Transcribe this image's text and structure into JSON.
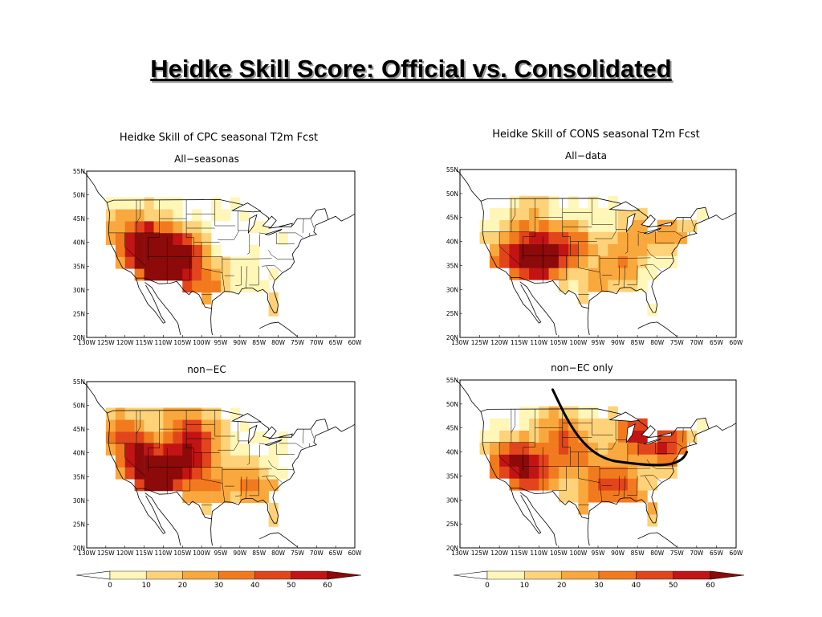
{
  "slide": {
    "title": "Heidke Skill Score: Official vs. Consolidated"
  },
  "panels": [
    {
      "id": "cpc-all",
      "title": "Heidke Skill of CPC seasonal T2m Fcst",
      "subtitle": "All−seasonas",
      "hot_regions": [
        {
          "lon": -111,
          "lat": 36,
          "v": 50
        },
        {
          "lon": -108,
          "lat": 35,
          "v": 45
        },
        {
          "lon": -117,
          "lat": 38,
          "v": 35
        },
        {
          "lon": -113,
          "lat": 41,
          "v": 30
        },
        {
          "lon": -105,
          "lat": 38,
          "v": 35
        },
        {
          "lon": -100,
          "lat": 32,
          "v": 20
        },
        {
          "lon": -96,
          "lat": 30,
          "v": 15
        },
        {
          "lon": -120,
          "lat": 44,
          "v": 22
        },
        {
          "lon": -82,
          "lat": 27,
          "v": 15
        }
      ]
    },
    {
      "id": "cons-all",
      "title": "Heidke Skill of CONS seasonal T2m Fcst",
      "subtitle": "All−data",
      "hot_regions": [
        {
          "lon": -111,
          "lat": 36,
          "v": 48
        },
        {
          "lon": -107,
          "lat": 38,
          "v": 40
        },
        {
          "lon": -118,
          "lat": 37,
          "v": 35
        },
        {
          "lon": -100,
          "lat": 40,
          "v": 25
        },
        {
          "lon": -88,
          "lat": 36,
          "v": 25
        },
        {
          "lon": -85,
          "lat": 44,
          "v": 22
        },
        {
          "lon": -75,
          "lat": 41,
          "v": 25
        },
        {
          "lon": -95,
          "lat": 31,
          "v": 22
        },
        {
          "lon": -113,
          "lat": 45,
          "v": 20
        }
      ]
    },
    {
      "id": "cpc-nonec",
      "title": "",
      "subtitle": "non−EC",
      "hot_regions": [
        {
          "lon": -112,
          "lat": 34,
          "v": 58
        },
        {
          "lon": -117,
          "lat": 39,
          "v": 48
        },
        {
          "lon": -106,
          "lat": 38,
          "v": 42
        },
        {
          "lon": -100,
          "lat": 42,
          "v": 35
        },
        {
          "lon": -98,
          "lat": 33,
          "v": 30
        },
        {
          "lon": -88,
          "lat": 34,
          "v": 25
        },
        {
          "lon": -120,
          "lat": 45,
          "v": 35
        },
        {
          "lon": -105,
          "lat": 46,
          "v": 30
        },
        {
          "lon": -82,
          "lat": 30,
          "v": 20
        }
      ]
    },
    {
      "id": "cons-nonec",
      "title": "",
      "subtitle": "non−EC only",
      "hot_regions": [
        {
          "lon": -111,
          "lat": 36,
          "v": 50
        },
        {
          "lon": -118,
          "lat": 38,
          "v": 45
        },
        {
          "lon": -85,
          "lat": 44,
          "v": 50
        },
        {
          "lon": -76,
          "lat": 41,
          "v": 45
        },
        {
          "lon": -100,
          "lat": 40,
          "v": 32
        },
        {
          "lon": -90,
          "lat": 34,
          "v": 35
        },
        {
          "lon": -105,
          "lat": 45,
          "v": 30
        },
        {
          "lon": -96,
          "lat": 31,
          "v": 28
        },
        {
          "lon": -82,
          "lat": 29,
          "v": 22
        }
      ]
    }
  ],
  "axes": {
    "lat_ticks": [
      "55N",
      "50N",
      "45N",
      "40N",
      "35N",
      "30N",
      "25N",
      "20N"
    ],
    "lon_ticks": [
      "130W",
      "125W",
      "120W",
      "115W",
      "110W",
      "105W",
      "100W",
      "95W",
      "90W",
      "85W",
      "80W",
      "75W",
      "70W",
      "65W",
      "60W"
    ]
  },
  "colorbar": {
    "labels": [
      "0",
      "10",
      "20",
      "30",
      "40",
      "50",
      "60"
    ],
    "colors": [
      "#ffffff",
      "#fff6b8",
      "#fdd279",
      "#f9a83e",
      "#f27a1e",
      "#e2451c",
      "#c21414",
      "#8c0a0a"
    ]
  },
  "annotation": {
    "color": "#000000"
  }
}
